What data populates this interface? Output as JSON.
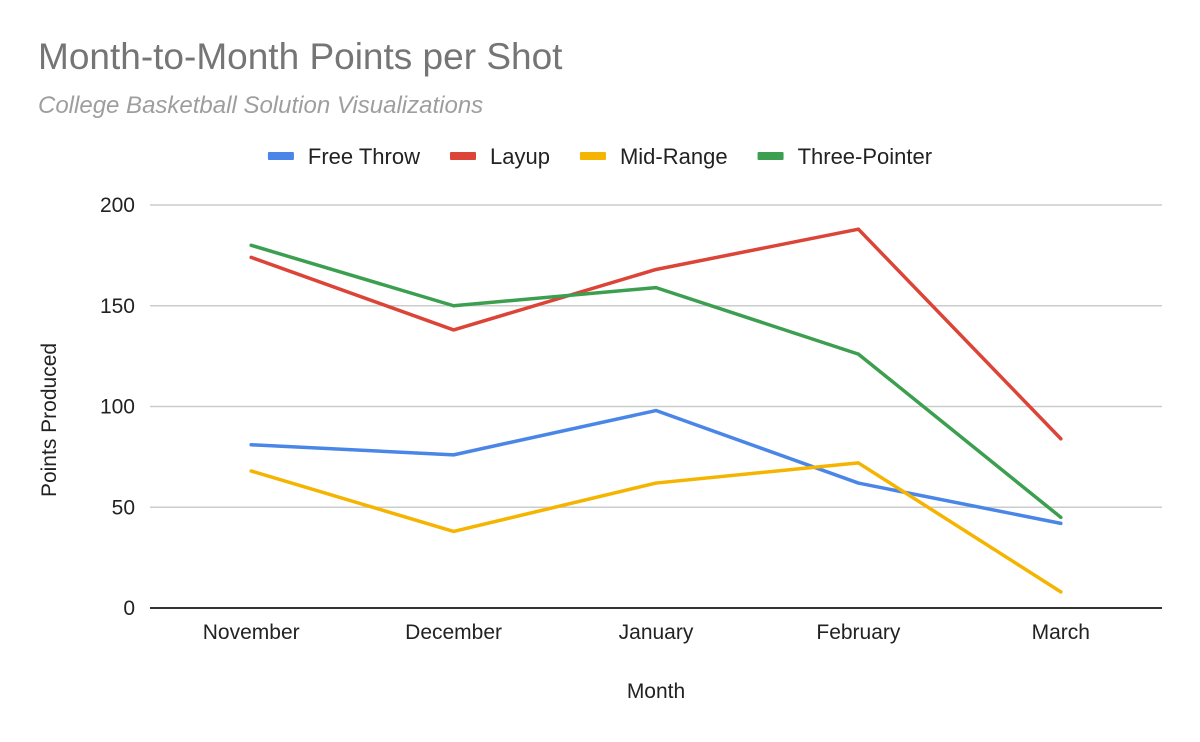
{
  "colors": {
    "background": "#ffffff",
    "title": "#757575",
    "subtitle": "#9e9e9e",
    "grid": "#cccccc",
    "axis": "#333333",
    "text": "#222222"
  },
  "chart_data": {
    "type": "line",
    "title": "Month-to-Month Points per Shot",
    "subtitle": "College Basketball Solution Visualizations",
    "xlabel": "Month",
    "ylabel": "Points Produced",
    "categories": [
      "November",
      "December",
      "January",
      "February",
      "March"
    ],
    "ylim": [
      0,
      200
    ],
    "yticks": [
      0,
      50,
      100,
      150,
      200
    ],
    "grid": true,
    "legend_position": "top",
    "series": [
      {
        "name": "Free Throw",
        "color": "#4a86e8",
        "values": [
          81,
          76,
          98,
          62,
          42
        ]
      },
      {
        "name": "Layup",
        "color": "#db4437",
        "values": [
          174,
          138,
          168,
          188,
          84
        ]
      },
      {
        "name": "Mid-Range",
        "color": "#f4b400",
        "values": [
          68,
          38,
          62,
          72,
          8
        ]
      },
      {
        "name": "Three-Pointer",
        "color": "#3c9f50",
        "values": [
          180,
          150,
          159,
          126,
          45
        ]
      }
    ]
  }
}
